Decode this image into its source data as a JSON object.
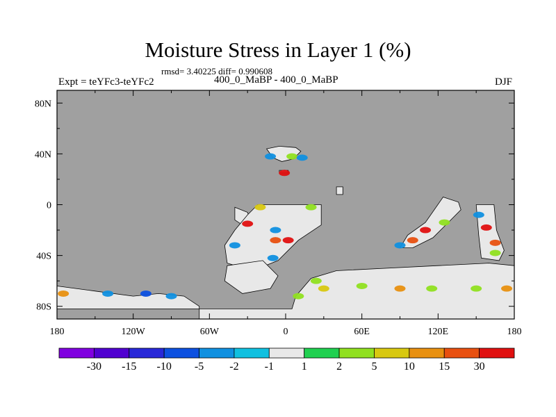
{
  "chart_data": {
    "type": "heatmap",
    "title": "Moisture Stress in Layer 1 (%)",
    "stats": "rmsd= 3.40225 diff= 0.990608",
    "left_label": "Expt = teYFc3-teYFc2",
    "center_label": "400_0_MaBP - 400_0_MaBP",
    "right_label": "DJF",
    "x_ticks": [
      "180",
      "120W",
      "60W",
      "0",
      "60E",
      "120E",
      "180"
    ],
    "x_tick_values": [
      -180,
      -120,
      -60,
      0,
      60,
      120,
      180
    ],
    "y_ticks": [
      "80N",
      "40N",
      "0",
      "40S",
      "80S"
    ],
    "y_tick_values": [
      80,
      40,
      0,
      -40,
      -80
    ],
    "xlim": [
      -180,
      180
    ],
    "ylim": [
      -90,
      90
    ],
    "ocean_color": "#a0a0a0",
    "colorbar": {
      "colors": [
        "#8000e0",
        "#5000d0",
        "#2828d8",
        "#0c50e0",
        "#1090e0",
        "#10c0e0",
        "#e8e8e8",
        "#20d050",
        "#90e020",
        "#d8c810",
        "#e89010",
        "#e85010",
        "#e01010"
      ],
      "labels": [
        "-30",
        "-15",
        "-10",
        "-5",
        "-2",
        "-1",
        "1",
        "2",
        "5",
        "10",
        "15",
        "30"
      ]
    },
    "land_regions": [
      {
        "name": "north-atlantic-islands",
        "polygon": [
          [
            -15,
            44
          ],
          [
            -5,
            46
          ],
          [
            8,
            45
          ],
          [
            12,
            42
          ],
          [
            6,
            36
          ],
          [
            -3,
            34
          ],
          [
            -10,
            37
          ]
        ]
      },
      {
        "name": "small-island",
        "polygon": [
          [
            -5,
            27
          ],
          [
            2,
            27
          ],
          [
            2,
            25
          ],
          [
            -5,
            25
          ]
        ]
      },
      {
        "name": "central-atlantic-island",
        "polygon": [
          [
            -40,
            -2
          ],
          [
            -30,
            -6
          ],
          [
            -28,
            -12
          ],
          [
            -34,
            -16
          ],
          [
            -40,
            -12
          ]
        ]
      },
      {
        "name": "gondwana-west",
        "polygon": [
          [
            -22,
            0
          ],
          [
            28,
            0
          ],
          [
            28,
            -16
          ],
          [
            10,
            -28
          ],
          [
            -6,
            -44
          ],
          [
            -26,
            -52
          ],
          [
            -46,
            -46
          ],
          [
            -48,
            -32
          ],
          [
            -40,
            -20
          ],
          [
            -30,
            -8
          ]
        ]
      },
      {
        "name": "gondwana-southwest",
        "polygon": [
          [
            -46,
            -48
          ],
          [
            -18,
            -44
          ],
          [
            -6,
            -56
          ],
          [
            -12,
            -66
          ],
          [
            -34,
            -70
          ],
          [
            -48,
            -60
          ]
        ]
      },
      {
        "name": "north-small",
        "polygon": [
          [
            40,
            14
          ],
          [
            45,
            14
          ],
          [
            45,
            8
          ],
          [
            40,
            8
          ]
        ]
      },
      {
        "name": "east-peninsula",
        "polygon": [
          [
            124,
            6
          ],
          [
            136,
            2
          ],
          [
            138,
            -4
          ],
          [
            128,
            -14
          ],
          [
            116,
            -26
          ],
          [
            100,
            -34
          ],
          [
            90,
            -34
          ],
          [
            96,
            -24
          ],
          [
            110,
            -14
          ]
        ]
      },
      {
        "name": "far-east-strip",
        "polygon": [
          [
            150,
            0
          ],
          [
            164,
            0
          ],
          [
            166,
            -20
          ],
          [
            172,
            -36
          ],
          [
            168,
            -44
          ],
          [
            154,
            -42
          ],
          [
            152,
            -24
          ]
        ]
      },
      {
        "name": "antarctic-coast",
        "polygon": [
          [
            -180,
            -64
          ],
          [
            -150,
            -68
          ],
          [
            -120,
            -72
          ],
          [
            -100,
            -70
          ],
          [
            -80,
            -72
          ],
          [
            -68,
            -80
          ],
          [
            -68,
            -90
          ],
          [
            180,
            -90
          ],
          [
            180,
            -48
          ],
          [
            160,
            -46
          ],
          [
            120,
            -48
          ],
          [
            80,
            -50
          ],
          [
            40,
            -52
          ],
          [
            20,
            -58
          ],
          [
            8,
            -72
          ],
          [
            5,
            -82
          ],
          [
            -180,
            -82
          ]
        ]
      }
    ],
    "anomaly_patches": [
      {
        "lon": -12,
        "lat": 38,
        "value": -3
      },
      {
        "lon": 5,
        "lat": 38,
        "value": 3
      },
      {
        "lon": 13,
        "lat": 37,
        "value": -3
      },
      {
        "lon": -1,
        "lat": 25,
        "value": 30
      },
      {
        "lon": -30,
        "lat": -15,
        "value": 30
      },
      {
        "lon": -8,
        "lat": -20,
        "value": -3
      },
      {
        "lon": 2,
        "lat": -28,
        "value": 30
      },
      {
        "lon": -8,
        "lat": -28,
        "value": 20
      },
      {
        "lon": -40,
        "lat": -32,
        "value": -3
      },
      {
        "lon": 20,
        "lat": -2,
        "value": 3
      },
      {
        "lon": -20,
        "lat": -2,
        "value": 7
      },
      {
        "lon": -10,
        "lat": -42,
        "value": -3
      },
      {
        "lon": 110,
        "lat": -20,
        "value": 30
      },
      {
        "lon": 100,
        "lat": -28,
        "value": 20
      },
      {
        "lon": 125,
        "lat": -14,
        "value": 3
      },
      {
        "lon": 90,
        "lat": -32,
        "value": -3
      },
      {
        "lon": 158,
        "lat": -18,
        "value": 30
      },
      {
        "lon": 165,
        "lat": -30,
        "value": 20
      },
      {
        "lon": 152,
        "lat": -8,
        "value": -3
      },
      {
        "lon": 165,
        "lat": -38,
        "value": 3
      },
      {
        "lon": 24,
        "lat": -60,
        "value": 3
      },
      {
        "lon": 30,
        "lat": -66,
        "value": 7
      },
      {
        "lon": 90,
        "lat": -66,
        "value": 10
      },
      {
        "lon": 115,
        "lat": -66,
        "value": 3
      },
      {
        "lon": 60,
        "lat": -64,
        "value": 3
      },
      {
        "lon": -175,
        "lat": -70,
        "value": 10
      },
      {
        "lon": -140,
        "lat": -70,
        "value": -3
      },
      {
        "lon": -110,
        "lat": -70,
        "value": -7
      },
      {
        "lon": 150,
        "lat": -66,
        "value": 3
      },
      {
        "lon": 174,
        "lat": -66,
        "value": 10
      },
      {
        "lon": 10,
        "lat": -72,
        "value": 3
      },
      {
        "lon": -90,
        "lat": -72,
        "value": -3
      }
    ]
  }
}
